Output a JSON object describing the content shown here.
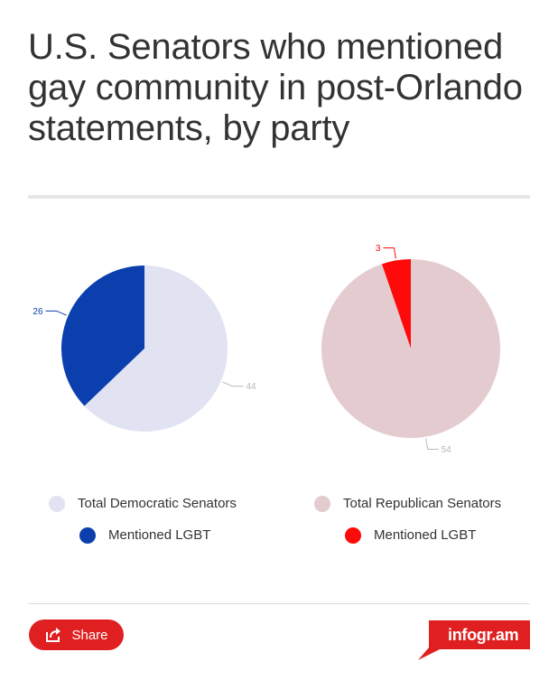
{
  "title": "U.S. Senators who mentioned gay community in post-Orlando statements, by party",
  "colors": {
    "dem_total": "#e1e3f2",
    "dem_lgbt": "#0b3fad",
    "rep_total": "#e4cbd0",
    "rep_lgbt": "#ff0a0a",
    "accent": "#e02020"
  },
  "chart_data": [
    {
      "type": "pie",
      "title": "",
      "slices": [
        {
          "label": "Mentioned LGBT",
          "value": 26,
          "color": "#0b3fad"
        },
        {
          "label": "Total Democratic Senators",
          "value": 44,
          "color": "#e1e3f2"
        }
      ],
      "legend": "bottom"
    },
    {
      "type": "pie",
      "title": "",
      "slices": [
        {
          "label": "Mentioned LGBT",
          "value": 3,
          "color": "#ff0a0a"
        },
        {
          "label": "Total Republican Senators",
          "value": 54,
          "color": "#e4cbd0"
        }
      ],
      "legend": "bottom"
    }
  ],
  "legend": {
    "dem": [
      {
        "label": "Total Democratic Senators",
        "color": "#e1e3f2"
      },
      {
        "label": "Mentioned LGBT",
        "color": "#0b3fad"
      }
    ],
    "rep": [
      {
        "label": "Total Republican Senators",
        "color": "#e4cbd0"
      },
      {
        "label": "Mentioned LGBT",
        "color": "#ff0a0a"
      }
    ]
  },
  "footer": {
    "share_label": "Share",
    "share_icon": "share-icon",
    "brand": "infogr.am"
  }
}
